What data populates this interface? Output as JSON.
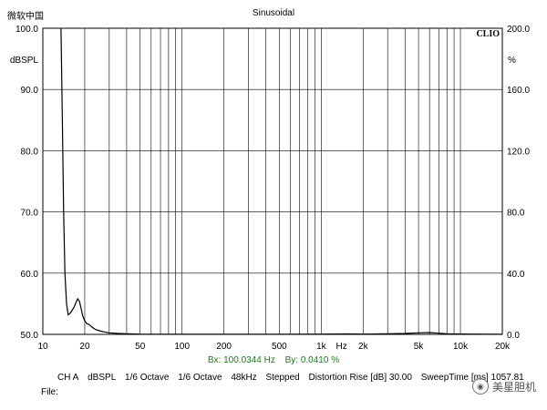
{
  "header": {
    "left_text": "微软中国",
    "title": "Sinusoidal"
  },
  "chart_data": {
    "type": "line",
    "title": "Sinusoidal",
    "brand": "CLIO",
    "x_scale": "log",
    "xlim": [
      10,
      20000
    ],
    "ylim": [
      50,
      100
    ],
    "y2lim": [
      0,
      200
    ],
    "ylabel": "dBSPL",
    "y2label": "%",
    "xlabel": "Hz",
    "grid": true,
    "x_tick_labels": [
      {
        "value": 10,
        "label": "10"
      },
      {
        "value": 20,
        "label": "20"
      },
      {
        "value": 50,
        "label": "50"
      },
      {
        "value": 100,
        "label": "100"
      },
      {
        "value": 200,
        "label": "200"
      },
      {
        "value": 500,
        "label": "500"
      },
      {
        "value": 1000,
        "label": "1k"
      },
      {
        "value": 2000,
        "label": "2k"
      },
      {
        "value": 5000,
        "label": "5k"
      },
      {
        "value": 10000,
        "label": "10k"
      },
      {
        "value": 20000,
        "label": "20k"
      }
    ],
    "xlabel_value": 1400,
    "y_tick_labels": [
      {
        "value": 100,
        "label": "100.0"
      },
      {
        "value": 90,
        "label": "90.0"
      },
      {
        "value": 80,
        "label": "80.0"
      },
      {
        "value": 70,
        "label": "70.0"
      },
      {
        "value": 60,
        "label": "60.0"
      },
      {
        "value": 50,
        "label": "50.0"
      }
    ],
    "y2_tick_labels": [
      {
        "value": 200,
        "label": "200.0"
      },
      {
        "value": 160,
        "label": "160.0"
      },
      {
        "value": 120,
        "label": "120.0"
      },
      {
        "value": 80,
        "label": "80.0"
      },
      {
        "value": 40,
        "label": "40.0"
      },
      {
        "value": 0,
        "label": "0.0"
      }
    ],
    "cursor_x": 100,
    "series": [
      {
        "color": "#000000",
        "x": [
          13.5,
          13.8,
          14.1,
          14.4,
          14.8,
          15.2,
          15.8,
          16.3,
          16.8,
          17.3,
          17.8,
          18.3,
          18.8,
          19.3,
          19.9,
          20.6,
          21.5,
          22.5,
          23.8,
          25.5,
          27.5,
          30,
          35,
          40,
          50,
          70,
          100,
          200,
          500,
          1000,
          1500,
          2000,
          3000,
          4000,
          5000,
          6000,
          7000,
          8000,
          12000,
          20000
        ],
        "y": [
          100,
          85,
          70,
          60,
          55,
          53.2,
          53.5,
          54.0,
          54.5,
          55.2,
          55.8,
          55.4,
          54.3,
          53.1,
          52.3,
          51.8,
          51.6,
          51.2,
          50.8,
          50.6,
          50.4,
          50.25,
          50.15,
          50.1,
          50.05,
          50.03,
          50.02,
          50.02,
          50.03,
          50.05,
          50.08,
          50.05,
          50.1,
          50.15,
          50.25,
          50.3,
          50.2,
          50.1,
          50.05,
          50.02
        ]
      }
    ]
  },
  "measurement": {
    "bx": "Bx: 100.0344 Hz",
    "by": "By: 0.0410 %"
  },
  "info": {
    "channel": "CH A",
    "unit": "dBSPL",
    "octave1": "1/6 Octave",
    "octave2": "1/6 Octave",
    "rate": "48kHz",
    "mode": "Stepped",
    "distortion": "Distortion Rise [dB] 30.00",
    "sweep": "SweepTime [ms] 1057.81"
  },
  "file_label": "File:",
  "watermark": "美星胆机"
}
